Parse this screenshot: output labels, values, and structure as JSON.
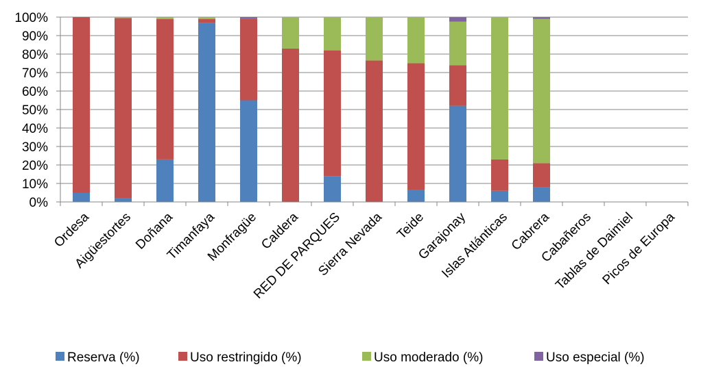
{
  "chart_data": {
    "type": "bar",
    "stacked": true,
    "percent_stacked": true,
    "categories": [
      "Ordesa",
      "Aigüestortes",
      "Doñana",
      "Timanfaya",
      "Monfragüe",
      "Caldera",
      "RED DE PARQUES",
      "Sierra Nevada",
      "Teide",
      "Garajonay",
      "Islas Atlánticas",
      "Cabrera",
      "Cabañeros",
      "Tablas de Daimiel",
      "Picos de Europa"
    ],
    "series": [
      {
        "name": "Reserva (%)",
        "color": "#4F81BD",
        "values": [
          5,
          2,
          23,
          97,
          55,
          0,
          14,
          0,
          6.5,
          52,
          6,
          8,
          0,
          0,
          0
        ]
      },
      {
        "name": "Uso restringido (%)",
        "color": "#C0504D",
        "values": [
          95,
          97.5,
          76,
          2,
          44,
          83,
          68,
          76.5,
          68.5,
          22,
          17,
          13,
          0,
          0,
          0
        ]
      },
      {
        "name": "Uso moderado (%)",
        "color": "#9BBB59",
        "values": [
          0,
          0.5,
          1,
          1,
          0,
          17,
          18,
          23.5,
          25,
          23.5,
          77,
          78,
          0,
          0,
          0
        ]
      },
      {
        "name": "Uso especial (%)",
        "color": "#8064A2",
        "values": [
          0,
          0,
          0,
          0,
          1,
          0,
          0,
          0,
          0,
          2.5,
          0,
          1,
          0,
          0,
          0
        ]
      }
    ],
    "y_ticks": [
      "0%",
      "10%",
      "20%",
      "30%",
      "40%",
      "50%",
      "60%",
      "70%",
      "80%",
      "90%",
      "100%"
    ],
    "ylim": [
      0,
      100
    ],
    "grid": true,
    "legend_position": "bottom"
  }
}
